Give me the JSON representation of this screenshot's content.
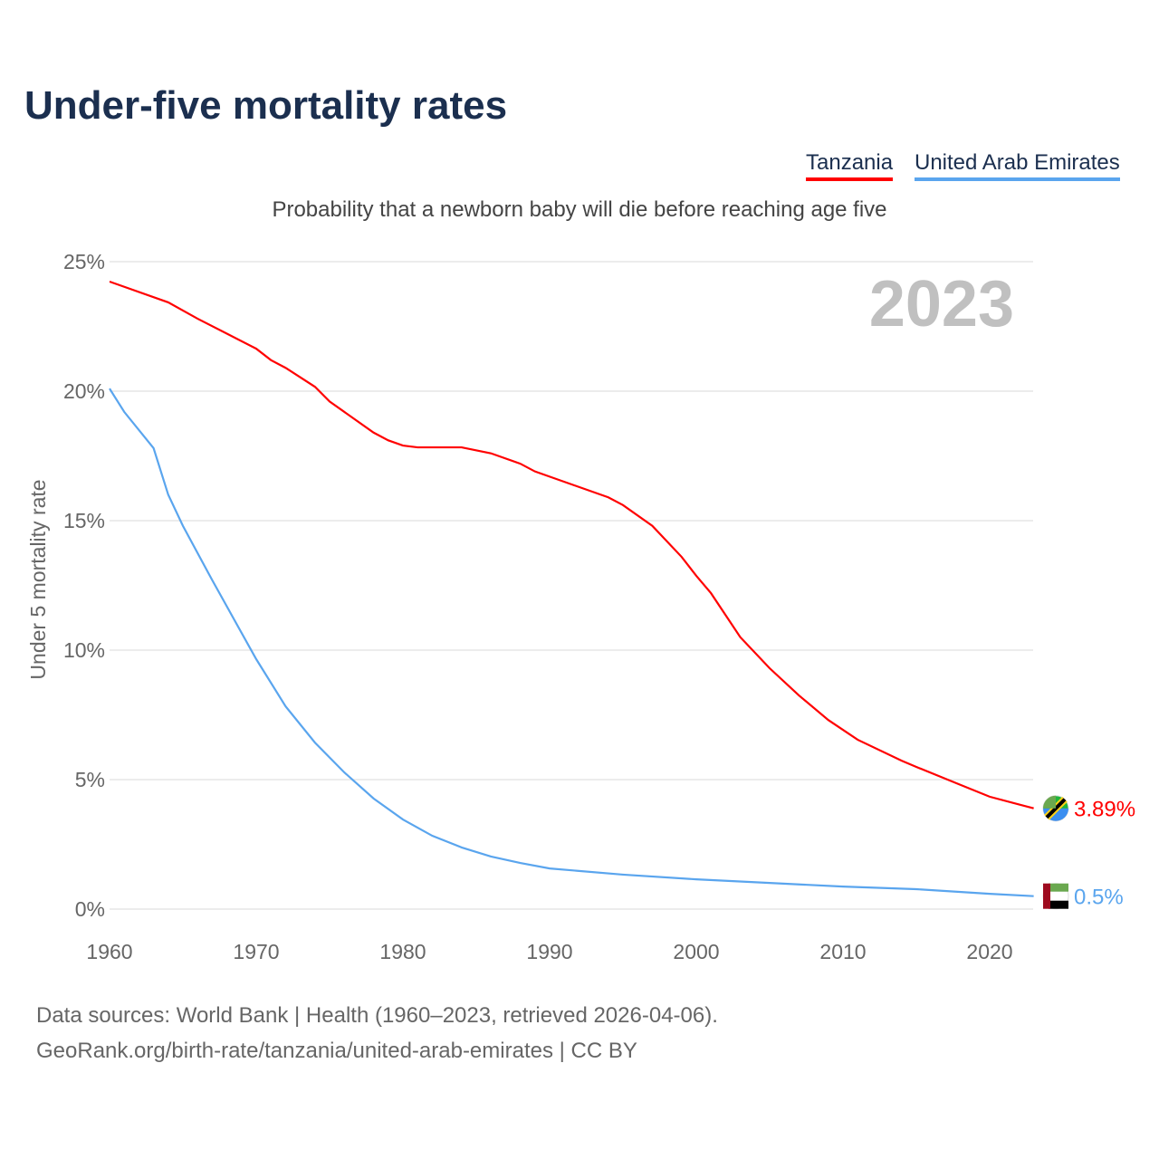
{
  "chart_data": {
    "type": "line",
    "title": "Under-five mortality rates",
    "subtitle": "Probability that a newborn baby will die before reaching age five",
    "ylabel": "Under 5 mortality rate",
    "xlabel": "",
    "year_label": "2023",
    "xlim": [
      1960,
      2023
    ],
    "ylim": [
      0,
      25
    ],
    "x_ticks": [
      1960,
      1970,
      1980,
      1990,
      2000,
      2010,
      2020
    ],
    "y_ticks": [
      0,
      5,
      10,
      15,
      20,
      25
    ],
    "y_tick_labels": [
      "0%",
      "5%",
      "10%",
      "15%",
      "20%",
      "25%"
    ],
    "legend_position": "top-right",
    "series": [
      {
        "name": "Tanzania",
        "color": "#ff0000",
        "end_label": "3.89%",
        "points": [
          [
            1960,
            24.23
          ],
          [
            1964,
            23.43
          ],
          [
            1966,
            22.8
          ],
          [
            1970,
            21.64
          ],
          [
            1971,
            21.2
          ],
          [
            1972,
            20.9
          ],
          [
            1974,
            20.17
          ],
          [
            1975,
            19.6
          ],
          [
            1978,
            18.4
          ],
          [
            1979,
            18.1
          ],
          [
            1980,
            17.9
          ],
          [
            1981,
            17.83
          ],
          [
            1984,
            17.83
          ],
          [
            1986,
            17.6
          ],
          [
            1988,
            17.2
          ],
          [
            1989,
            16.9
          ],
          [
            1990,
            16.7
          ],
          [
            1994,
            15.9
          ],
          [
            1995,
            15.6
          ],
          [
            1997,
            14.8
          ],
          [
            1999,
            13.6
          ],
          [
            2000,
            12.87
          ],
          [
            2001,
            12.2
          ],
          [
            2003,
            10.5
          ],
          [
            2005,
            9.3
          ],
          [
            2007,
            8.25
          ],
          [
            2009,
            7.3
          ],
          [
            2011,
            6.54
          ],
          [
            2014,
            5.73
          ],
          [
            2015,
            5.49
          ],
          [
            2018,
            4.8
          ],
          [
            2020,
            4.34
          ],
          [
            2023,
            3.89
          ]
        ]
      },
      {
        "name": "United Arab Emirates",
        "color": "#5aa5ee",
        "end_label": "0.5%",
        "points": [
          [
            1960,
            20.1
          ],
          [
            1961,
            19.2
          ],
          [
            1963,
            17.8
          ],
          [
            1964,
            16.0
          ],
          [
            1965,
            14.8
          ],
          [
            1967,
            12.7
          ],
          [
            1970,
            9.65
          ],
          [
            1972,
            7.83
          ],
          [
            1974,
            6.43
          ],
          [
            1976,
            5.28
          ],
          [
            1978,
            4.27
          ],
          [
            1980,
            3.46
          ],
          [
            1982,
            2.83
          ],
          [
            1984,
            2.38
          ],
          [
            1986,
            2.03
          ],
          [
            1988,
            1.78
          ],
          [
            1990,
            1.57
          ],
          [
            1995,
            1.33
          ],
          [
            2000,
            1.15
          ],
          [
            2005,
            1.01
          ],
          [
            2010,
            0.87
          ],
          [
            2015,
            0.77
          ],
          [
            2020,
            0.59
          ],
          [
            2023,
            0.5
          ]
        ]
      }
    ]
  },
  "footer": {
    "source": "Data sources: World Bank | Health (1960–2023, retrieved 2026-04-06).",
    "link": "GeoRank.org/birth-rate/tanzania/united-arab-emirates | CC BY"
  }
}
